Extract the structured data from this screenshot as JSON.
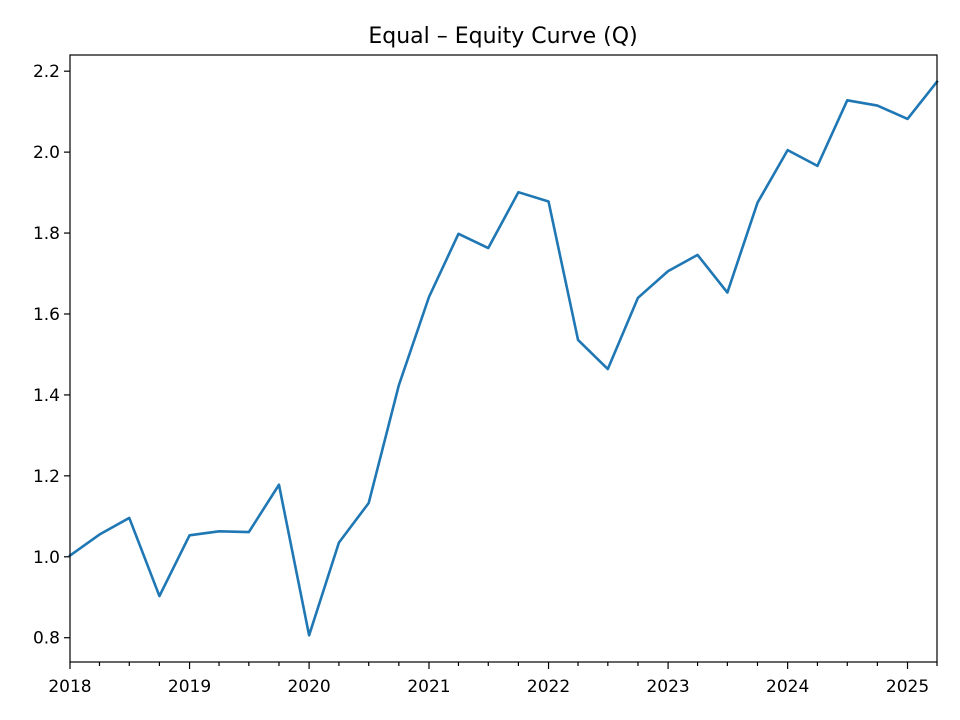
{
  "chart_data": {
    "type": "line",
    "title": "Equal – Equity Curve (Q)",
    "xlabel": "",
    "ylabel": "",
    "grid": false,
    "legend": "none",
    "x_range": [
      "2018-01-01",
      "2025-04-01"
    ],
    "ylim": [
      0.74,
      2.24
    ],
    "x_ticks": [
      "2018",
      "2019",
      "2020",
      "2021",
      "2022",
      "2023",
      "2024",
      "2025"
    ],
    "y_ticks": [
      "0.8",
      "1.0",
      "1.2",
      "1.4",
      "1.6",
      "1.8",
      "2.0",
      "2.2"
    ],
    "color": "#1f77b4",
    "series": [
      {
        "x": [
          "2018-01-01",
          "2018-04-01",
          "2018-07-01",
          "2018-10-01",
          "2019-01-01",
          "2019-04-01",
          "2019-07-01",
          "2019-10-01",
          "2020-01-01",
          "2020-04-01",
          "2020-07-01",
          "2020-10-01",
          "2021-01-01",
          "2021-04-01",
          "2021-07-01",
          "2021-10-01",
          "2022-01-01",
          "2022-04-01",
          "2022-07-01",
          "2022-10-01",
          "2023-01-01",
          "2023-04-01",
          "2023-07-01",
          "2023-10-01",
          "2024-01-01",
          "2024-04-01",
          "2024-07-01",
          "2024-10-01",
          "2025-01-01",
          "2025-04-01"
        ],
        "values": [
          1.003,
          1.055,
          1.096,
          0.903,
          1.053,
          1.063,
          1.061,
          1.178,
          0.806,
          1.035,
          1.133,
          1.424,
          1.642,
          1.798,
          1.763,
          1.901,
          1.878,
          1.536,
          1.464,
          1.64,
          1.706,
          1.746,
          1.653,
          1.875,
          2.005,
          1.966,
          2.128,
          2.115,
          2.082,
          2.174
        ]
      }
    ]
  }
}
